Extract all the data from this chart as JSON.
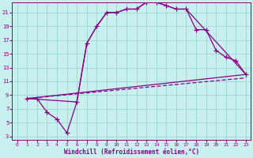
{
  "xlabel": "Windchill (Refroidissement éolien,°C)",
  "background_color": "#c8f0ee",
  "grid_color": "#a0d8d4",
  "line_color": "#880088",
  "xlim": [
    -0.5,
    23.5
  ],
  "ylim": [
    2.5,
    22.5
  ],
  "xticks": [
    0,
    1,
    2,
    3,
    4,
    5,
    6,
    7,
    8,
    9,
    10,
    11,
    12,
    13,
    14,
    15,
    16,
    17,
    18,
    19,
    20,
    21,
    22,
    23
  ],
  "yticks": [
    3,
    5,
    7,
    9,
    11,
    13,
    15,
    17,
    19,
    21
  ],
  "line1_x": [
    1,
    2,
    3,
    4,
    5,
    6,
    7,
    8,
    9,
    10,
    11,
    12,
    13,
    14,
    15,
    16,
    17,
    18,
    19,
    20,
    21,
    22,
    23
  ],
  "line1_y": [
    8.5,
    8.5,
    6.5,
    5.5,
    3.5,
    8.0,
    16.5,
    19.0,
    21.0,
    21.0,
    21.5,
    21.5,
    22.5,
    22.5,
    22.0,
    21.5,
    21.5,
    18.5,
    18.5,
    15.5,
    14.5,
    14.0,
    12.0
  ],
  "line1_markevery": [
    0,
    1,
    2,
    3,
    4,
    5,
    6,
    7,
    8,
    9,
    10,
    11,
    12,
    13,
    14,
    15,
    16,
    17,
    18,
    19,
    20,
    21,
    22
  ],
  "line2_x": [
    1,
    6,
    7,
    8,
    9,
    10,
    11,
    12,
    13,
    14,
    15,
    16,
    17,
    23
  ],
  "line2_y": [
    8.5,
    8.0,
    16.5,
    19.0,
    21.0,
    21.0,
    21.5,
    21.5,
    22.5,
    22.5,
    22.0,
    21.5,
    21.5,
    12.0
  ],
  "line3_x": [
    1,
    23
  ],
  "line3_y": [
    8.5,
    12.0
  ],
  "line4_x": [
    1,
    23
  ],
  "line4_y": [
    8.5,
    11.5
  ]
}
